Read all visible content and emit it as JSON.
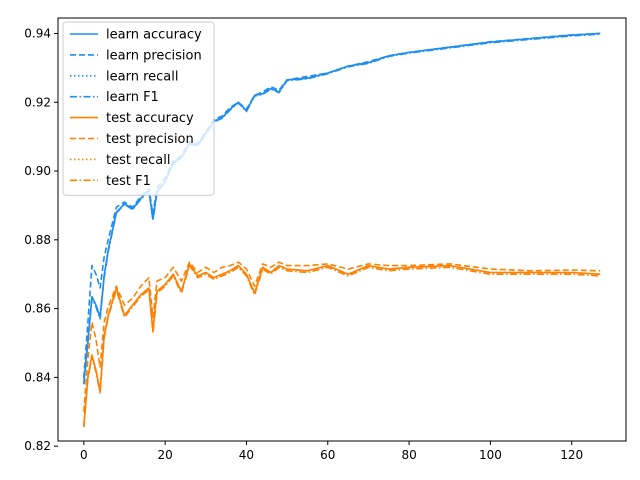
{
  "chart_data": {
    "type": "line",
    "title": "",
    "xlabel": "",
    "ylabel": "",
    "xlim": [
      -6.35,
      133.35
    ],
    "ylim": [
      0.8215,
      0.9445
    ],
    "xticks": [
      0,
      20,
      40,
      60,
      80,
      100,
      120
    ],
    "yticks": [
      0.82,
      0.84,
      0.86,
      0.88,
      0.9,
      0.92,
      0.94
    ],
    "ytick_labels": [
      "0.82",
      "0.84",
      "0.86",
      "0.88",
      "0.90",
      "0.92",
      "0.94"
    ],
    "grid": false,
    "legend_position": "upper-left",
    "colors": {
      "learn": "#1f8ef1",
      "test": "#ff8000"
    },
    "series": [
      {
        "name": "learn accuracy",
        "group": "learn",
        "dash": "solid",
        "x": [
          0,
          1,
          2,
          3,
          4,
          5,
          6,
          8,
          10,
          12,
          14,
          16,
          17,
          18,
          20,
          22,
          24,
          26,
          28,
          30,
          32,
          34,
          36,
          38,
          40,
          42,
          44,
          46,
          48,
          50,
          55,
          60,
          65,
          70,
          75,
          80,
          90,
          100,
          110,
          120,
          127
        ],
        "y": [
          0.8385,
          0.8505,
          0.8635,
          0.861,
          0.8575,
          0.8695,
          0.877,
          0.888,
          0.8905,
          0.889,
          0.892,
          0.8945,
          0.886,
          0.894,
          0.897,
          0.9025,
          0.904,
          0.908,
          0.9075,
          0.911,
          0.9145,
          0.9155,
          0.918,
          0.92,
          0.9175,
          0.922,
          0.9225,
          0.924,
          0.923,
          0.9265,
          0.927,
          0.9285,
          0.9305,
          0.9315,
          0.9335,
          0.9345,
          0.936,
          0.9375,
          0.9385,
          0.9395,
          0.94
        ]
      },
      {
        "name": "learn precision",
        "group": "learn",
        "dash": "dashed",
        "x": [
          0,
          1,
          2,
          3,
          4,
          5,
          6,
          8,
          10,
          12,
          14,
          16,
          17,
          18,
          20,
          22,
          24,
          26,
          28,
          30,
          32,
          34,
          36,
          38,
          40,
          42,
          44,
          46,
          48,
          50,
          55,
          60,
          65,
          70,
          75,
          80,
          90,
          100,
          110,
          120,
          127
        ],
        "y": [
          0.84,
          0.856,
          0.8725,
          0.87,
          0.866,
          0.875,
          0.88,
          0.8895,
          0.891,
          0.8895,
          0.8925,
          0.895,
          0.8875,
          0.895,
          0.898,
          0.903,
          0.9045,
          0.9085,
          0.908,
          0.9115,
          0.915,
          0.916,
          0.9185,
          0.92,
          0.918,
          0.922,
          0.923,
          0.9245,
          0.9235,
          0.9265,
          0.9275,
          0.9285,
          0.9305,
          0.9318,
          0.9335,
          0.9345,
          0.936,
          0.9376,
          0.9386,
          0.9396,
          0.94
        ]
      },
      {
        "name": "learn recall",
        "group": "learn",
        "dash": "dotted",
        "x": [
          0,
          1,
          2,
          3,
          4,
          5,
          6,
          8,
          10,
          12,
          14,
          16,
          17,
          18,
          20,
          22,
          24,
          26,
          28,
          30,
          32,
          34,
          36,
          38,
          40,
          42,
          44,
          46,
          48,
          50,
          55,
          60,
          65,
          70,
          75,
          80,
          90,
          100,
          110,
          120,
          127
        ],
        "y": [
          0.8385,
          0.8505,
          0.8635,
          0.861,
          0.8575,
          0.8695,
          0.877,
          0.888,
          0.8905,
          0.889,
          0.892,
          0.8945,
          0.886,
          0.894,
          0.897,
          0.9025,
          0.904,
          0.908,
          0.9075,
          0.911,
          0.9145,
          0.9155,
          0.918,
          0.92,
          0.9175,
          0.922,
          0.9225,
          0.924,
          0.923,
          0.9265,
          0.927,
          0.9285,
          0.9305,
          0.9315,
          0.9335,
          0.9345,
          0.936,
          0.9375,
          0.9385,
          0.9395,
          0.94
        ]
      },
      {
        "name": "learn F1",
        "group": "learn",
        "dash": "dashdot",
        "x": [
          0,
          1,
          2,
          3,
          4,
          5,
          6,
          8,
          10,
          12,
          14,
          16,
          17,
          18,
          20,
          22,
          24,
          26,
          28,
          30,
          32,
          34,
          36,
          38,
          40,
          42,
          44,
          46,
          48,
          50,
          55,
          60,
          65,
          70,
          75,
          80,
          90,
          100,
          110,
          120,
          127
        ],
        "y": [
          0.838,
          0.85,
          0.863,
          0.8605,
          0.857,
          0.869,
          0.8765,
          0.8878,
          0.8903,
          0.8888,
          0.8918,
          0.8943,
          0.8858,
          0.8938,
          0.8968,
          0.9023,
          0.9038,
          0.9078,
          0.9073,
          0.9108,
          0.9143,
          0.9153,
          0.9178,
          0.9198,
          0.9173,
          0.9218,
          0.9223,
          0.9238,
          0.9228,
          0.9263,
          0.9268,
          0.9283,
          0.9303,
          0.9313,
          0.9333,
          0.9343,
          0.9358,
          0.9373,
          0.9383,
          0.9393,
          0.9398
        ]
      },
      {
        "name": "test accuracy",
        "group": "test",
        "dash": "solid",
        "x": [
          0,
          1,
          2,
          3,
          4,
          5,
          6,
          8,
          10,
          12,
          14,
          16,
          17,
          18,
          20,
          22,
          24,
          26,
          28,
          30,
          32,
          34,
          36,
          38,
          40,
          42,
          44,
          46,
          48,
          50,
          55,
          60,
          65,
          70,
          75,
          80,
          90,
          100,
          110,
          120,
          127
        ],
        "y": [
          0.826,
          0.84,
          0.8465,
          0.842,
          0.836,
          0.852,
          0.858,
          0.866,
          0.858,
          0.861,
          0.864,
          0.866,
          0.8535,
          0.865,
          0.867,
          0.87,
          0.865,
          0.873,
          0.8695,
          0.8705,
          0.869,
          0.87,
          0.871,
          0.8725,
          0.87,
          0.8645,
          0.872,
          0.8705,
          0.8725,
          0.8715,
          0.871,
          0.8725,
          0.87,
          0.8725,
          0.8715,
          0.872,
          0.8725,
          0.8705,
          0.8705,
          0.8705,
          0.87
        ]
      },
      {
        "name": "test precision",
        "group": "test",
        "dash": "dashed",
        "x": [
          0,
          1,
          2,
          3,
          4,
          5,
          6,
          8,
          10,
          12,
          14,
          16,
          17,
          18,
          20,
          22,
          24,
          26,
          28,
          30,
          32,
          34,
          36,
          38,
          40,
          42,
          44,
          46,
          48,
          50,
          55,
          60,
          65,
          70,
          75,
          80,
          90,
          100,
          110,
          120,
          127
        ],
        "y": [
          0.83,
          0.8455,
          0.856,
          0.851,
          0.843,
          0.856,
          0.8605,
          0.8665,
          0.861,
          0.863,
          0.8665,
          0.869,
          0.8575,
          0.868,
          0.869,
          0.872,
          0.868,
          0.8735,
          0.8705,
          0.872,
          0.8705,
          0.872,
          0.8725,
          0.8735,
          0.8715,
          0.8665,
          0.873,
          0.872,
          0.8735,
          0.8725,
          0.8725,
          0.873,
          0.8715,
          0.873,
          0.8725,
          0.8725,
          0.873,
          0.8715,
          0.871,
          0.8712,
          0.871
        ]
      },
      {
        "name": "test recall",
        "group": "test",
        "dash": "dotted",
        "x": [
          0,
          1,
          2,
          3,
          4,
          5,
          6,
          8,
          10,
          12,
          14,
          16,
          17,
          18,
          20,
          22,
          24,
          26,
          28,
          30,
          32,
          34,
          36,
          38,
          40,
          42,
          44,
          46,
          48,
          50,
          55,
          60,
          65,
          70,
          75,
          80,
          90,
          100,
          110,
          120,
          127
        ],
        "y": [
          0.826,
          0.84,
          0.8465,
          0.842,
          0.836,
          0.852,
          0.858,
          0.866,
          0.858,
          0.861,
          0.864,
          0.866,
          0.8535,
          0.865,
          0.867,
          0.87,
          0.865,
          0.873,
          0.8695,
          0.8705,
          0.869,
          0.87,
          0.871,
          0.8725,
          0.87,
          0.8645,
          0.872,
          0.8705,
          0.8725,
          0.8715,
          0.871,
          0.8725,
          0.87,
          0.8725,
          0.8715,
          0.872,
          0.8725,
          0.8705,
          0.8705,
          0.8705,
          0.87
        ]
      },
      {
        "name": "test F1",
        "group": "test",
        "dash": "dashdot",
        "x": [
          0,
          1,
          2,
          3,
          4,
          5,
          6,
          8,
          10,
          12,
          14,
          16,
          17,
          18,
          20,
          22,
          24,
          26,
          28,
          30,
          32,
          34,
          36,
          38,
          40,
          42,
          44,
          46,
          48,
          50,
          55,
          60,
          65,
          70,
          75,
          80,
          90,
          100,
          110,
          120,
          127
        ],
        "y": [
          0.8255,
          0.8395,
          0.846,
          0.8415,
          0.8355,
          0.8515,
          0.8575,
          0.8655,
          0.8575,
          0.8605,
          0.8635,
          0.8655,
          0.853,
          0.8645,
          0.8665,
          0.8695,
          0.8645,
          0.8725,
          0.869,
          0.87,
          0.8685,
          0.8695,
          0.8705,
          0.872,
          0.8695,
          0.864,
          0.8715,
          0.87,
          0.872,
          0.871,
          0.8705,
          0.872,
          0.8695,
          0.872,
          0.871,
          0.8715,
          0.872,
          0.87,
          0.87,
          0.87,
          0.8695
        ]
      }
    ]
  }
}
